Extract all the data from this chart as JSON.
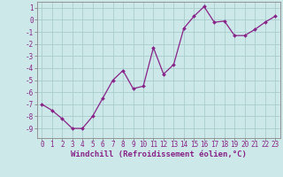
{
  "x": [
    0,
    1,
    2,
    3,
    4,
    5,
    6,
    7,
    8,
    9,
    10,
    11,
    12,
    13,
    14,
    15,
    16,
    17,
    18,
    19,
    20,
    21,
    22,
    23
  ],
  "y": [
    -7.0,
    -7.5,
    -8.2,
    -9.0,
    -9.0,
    -8.0,
    -6.5,
    -5.0,
    -4.2,
    -5.7,
    -5.5,
    -2.3,
    -4.5,
    -3.7,
    -0.7,
    0.3,
    1.1,
    -0.2,
    -0.1,
    -1.3,
    -1.3,
    -0.8,
    -0.2,
    0.3
  ],
  "line_color": "#882288",
  "marker": "D",
  "marker_size": 2.0,
  "bg_color": "#cce8e8",
  "grid_color": "#aacccc",
  "xlabel": "Windchill (Refroidissement éolien,°C)",
  "ylabel": "",
  "ylim": [
    -9.8,
    1.5
  ],
  "xlim": [
    -0.5,
    23.5
  ],
  "yticks": [
    1,
    0,
    -1,
    -2,
    -3,
    -4,
    -5,
    -6,
    -7,
    -8,
    -9
  ],
  "xticks": [
    0,
    1,
    2,
    3,
    4,
    5,
    6,
    7,
    8,
    9,
    10,
    11,
    12,
    13,
    14,
    15,
    16,
    17,
    18,
    19,
    20,
    21,
    22,
    23
  ],
  "tick_fontsize": 5.5,
  "xlabel_fontsize": 6.5,
  "label_color": "#882288",
  "axis_color": "#888888",
  "linewidth": 0.9
}
